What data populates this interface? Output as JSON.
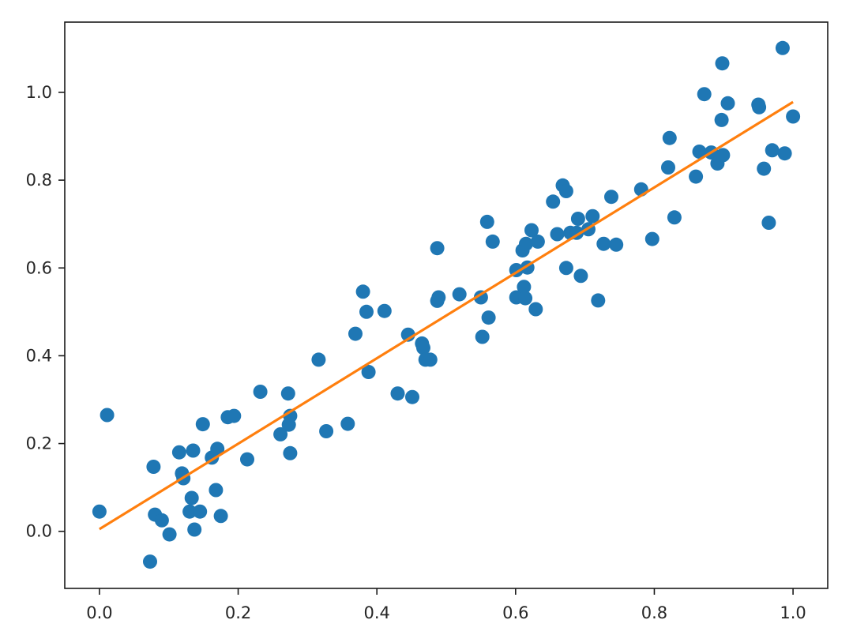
{
  "chart_data": {
    "type": "scatter",
    "title": "",
    "xlabel": "",
    "ylabel": "",
    "xlim": [
      -0.05,
      1.05
    ],
    "ylim": [
      -0.13,
      1.16
    ],
    "xticks": [
      0.0,
      0.2,
      0.4,
      0.6,
      0.8,
      1.0
    ],
    "xtick_labels": [
      "0.0",
      "0.2",
      "0.4",
      "0.6",
      "0.8",
      "1.0"
    ],
    "yticks": [
      0.0,
      0.2,
      0.4,
      0.6,
      0.8,
      1.0
    ],
    "ytick_labels": [
      "0.0",
      "0.2",
      "0.4",
      "0.6",
      "0.8",
      "1.0"
    ],
    "grid": false,
    "legend": "none",
    "colors": {
      "points": "#1f77b4",
      "fit_line": "#ff7f0e"
    },
    "series": [
      {
        "kind": "scatter",
        "points": [
          [
            0.0,
            0.045
          ],
          [
            0.011,
            0.265
          ],
          [
            0.073,
            -0.069
          ],
          [
            0.078,
            0.147
          ],
          [
            0.08,
            0.038
          ],
          [
            0.09,
            0.025
          ],
          [
            0.101,
            -0.007
          ],
          [
            0.115,
            0.18
          ],
          [
            0.119,
            0.132
          ],
          [
            0.121,
            0.121
          ],
          [
            0.13,
            0.045
          ],
          [
            0.133,
            0.076
          ],
          [
            0.135,
            0.184
          ],
          [
            0.137,
            0.004
          ],
          [
            0.145,
            0.045
          ],
          [
            0.149,
            0.244
          ],
          [
            0.162,
            0.168
          ],
          [
            0.168,
            0.094
          ],
          [
            0.17,
            0.188
          ],
          [
            0.175,
            0.035
          ],
          [
            0.185,
            0.26
          ],
          [
            0.194,
            0.263
          ],
          [
            0.213,
            0.164
          ],
          [
            0.232,
            0.318
          ],
          [
            0.261,
            0.221
          ],
          [
            0.272,
            0.314
          ],
          [
            0.273,
            0.243
          ],
          [
            0.275,
            0.263
          ],
          [
            0.275,
            0.178
          ],
          [
            0.316,
            0.391
          ],
          [
            0.327,
            0.228
          ],
          [
            0.358,
            0.245
          ],
          [
            0.369,
            0.45
          ],
          [
            0.38,
            0.546
          ],
          [
            0.385,
            0.5
          ],
          [
            0.388,
            0.363
          ],
          [
            0.411,
            0.502
          ],
          [
            0.43,
            0.314
          ],
          [
            0.445,
            0.448
          ],
          [
            0.451,
            0.306
          ],
          [
            0.465,
            0.428
          ],
          [
            0.467,
            0.418
          ],
          [
            0.47,
            0.391
          ],
          [
            0.477,
            0.391
          ],
          [
            0.487,
            0.645
          ],
          [
            0.487,
            0.525
          ],
          [
            0.489,
            0.533
          ],
          [
            0.519,
            0.54
          ],
          [
            0.55,
            0.533
          ],
          [
            0.552,
            0.443
          ],
          [
            0.559,
            0.705
          ],
          [
            0.561,
            0.487
          ],
          [
            0.567,
            0.66
          ],
          [
            0.601,
            0.595
          ],
          [
            0.601,
            0.533
          ],
          [
            0.61,
            0.64
          ],
          [
            0.612,
            0.557
          ],
          [
            0.614,
            0.531
          ],
          [
            0.615,
            0.655
          ],
          [
            0.617,
            0.601
          ],
          [
            0.623,
            0.686
          ],
          [
            0.629,
            0.506
          ],
          [
            0.632,
            0.66
          ],
          [
            0.654,
            0.751
          ],
          [
            0.66,
            0.677
          ],
          [
            0.668,
            0.788
          ],
          [
            0.673,
            0.775
          ],
          [
            0.673,
            0.6
          ],
          [
            0.679,
            0.68
          ],
          [
            0.688,
            0.68
          ],
          [
            0.69,
            0.712
          ],
          [
            0.694,
            0.582
          ],
          [
            0.705,
            0.688
          ],
          [
            0.711,
            0.718
          ],
          [
            0.719,
            0.526
          ],
          [
            0.727,
            0.655
          ],
          [
            0.738,
            0.762
          ],
          [
            0.745,
            0.653
          ],
          [
            0.781,
            0.779
          ],
          [
            0.797,
            0.666
          ],
          [
            0.82,
            0.829
          ],
          [
            0.822,
            0.896
          ],
          [
            0.829,
            0.715
          ],
          [
            0.86,
            0.808
          ],
          [
            0.865,
            0.865
          ],
          [
            0.872,
            0.996
          ],
          [
            0.882,
            0.863
          ],
          [
            0.891,
            0.838
          ],
          [
            0.897,
            0.937
          ],
          [
            0.898,
            1.066
          ],
          [
            0.899,
            0.857
          ],
          [
            0.906,
            0.975
          ],
          [
            0.95,
            0.972
          ],
          [
            0.951,
            0.966
          ],
          [
            0.958,
            0.826
          ],
          [
            0.965,
            0.703
          ],
          [
            0.97,
            0.868
          ],
          [
            0.985,
            1.101
          ],
          [
            0.988,
            0.861
          ],
          [
            1.0,
            0.945
          ]
        ]
      },
      {
        "kind": "line",
        "points": [
          [
            0.0,
            0.005
          ],
          [
            1.0,
            0.978
          ]
        ]
      }
    ]
  }
}
